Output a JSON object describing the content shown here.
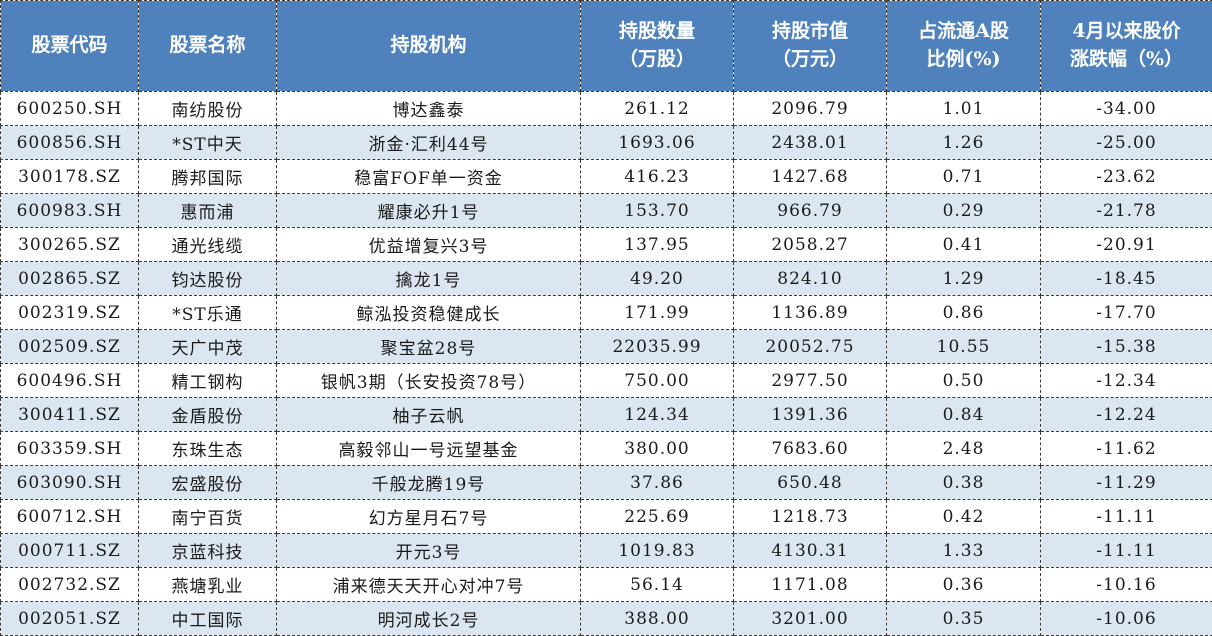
{
  "colors": {
    "header_bg": "#4F81BD",
    "header_text": "#FFFFFF",
    "row_bg": "#FFFFFF",
    "row_alt_bg": "#DCE6F1",
    "body_text": "#1A1A1A",
    "border": "#3A3A3A"
  },
  "chart_data": {
    "type": "table",
    "columns": [
      "股票代码",
      "股票名称",
      "持股机构",
      "持股数量（万股）",
      "持股市值（万元）",
      "占流通A股比例(%)",
      "4月以来股价涨跌幅（%）"
    ],
    "header_lines": [
      [
        "股票代码",
        ""
      ],
      [
        "股票名称",
        ""
      ],
      [
        "持股机构",
        ""
      ],
      [
        "持股数量",
        "（万股）"
      ],
      [
        "持股市值",
        "（万元）"
      ],
      [
        "占流通A股",
        "比例(%)"
      ],
      [
        "4月以来股价",
        "涨跌幅（%）"
      ]
    ],
    "rows": [
      [
        "600250.SH",
        "南纺股份",
        "博达鑫泰",
        "261.12",
        "2096.79",
        "1.01",
        "-34.00"
      ],
      [
        "600856.SH",
        "*ST中天",
        "浙金·汇利44号",
        "1693.06",
        "2438.01",
        "1.26",
        "-25.00"
      ],
      [
        "300178.SZ",
        "腾邦国际",
        "稳富FOF单一资金",
        "416.23",
        "1427.68",
        "0.71",
        "-23.62"
      ],
      [
        "600983.SH",
        "惠而浦",
        "耀康必升1号",
        "153.70",
        "966.79",
        "0.29",
        "-21.78"
      ],
      [
        "300265.SZ",
        "通光线缆",
        "优益增复兴3号",
        "137.95",
        "2058.27",
        "0.41",
        "-20.91"
      ],
      [
        "002865.SZ",
        "钧达股份",
        "擒龙1号",
        "49.20",
        "824.10",
        "1.29",
        "-18.45"
      ],
      [
        "002319.SZ",
        "*ST乐通",
        "鲸泓投资稳健成长",
        "171.99",
        "1136.89",
        "0.86",
        "-17.70"
      ],
      [
        "002509.SZ",
        "天广中茂",
        "聚宝盆28号",
        "22035.99",
        "20052.75",
        "10.55",
        "-15.38"
      ],
      [
        "600496.SH",
        "精工钢构",
        "银帆3期（长安投资78号）",
        "750.00",
        "2977.50",
        "0.50",
        "-12.34"
      ],
      [
        "300411.SZ",
        "金盾股份",
        "柚子云帆",
        "124.34",
        "1391.36",
        "0.84",
        "-12.24"
      ],
      [
        "603359.SH",
        "东珠生态",
        "高毅邻山一号远望基金",
        "380.00",
        "7683.60",
        "2.48",
        "-11.62"
      ],
      [
        "603090.SH",
        "宏盛股份",
        "千般龙腾19号",
        "37.86",
        "650.48",
        "0.38",
        "-11.29"
      ],
      [
        "600712.SH",
        "南宁百货",
        "幻方星月石7号",
        "225.69",
        "1218.73",
        "0.42",
        "-11.11"
      ],
      [
        "000711.SZ",
        "京蓝科技",
        "开元3号",
        "1019.83",
        "4130.31",
        "1.33",
        "-11.11"
      ],
      [
        "002732.SZ",
        "燕塘乳业",
        "浦来德天天开心对冲7号",
        "56.14",
        "1171.08",
        "0.36",
        "-10.16"
      ],
      [
        "002051.SZ",
        "中工国际",
        "明河成长2号",
        "388.00",
        "3201.00",
        "0.35",
        "-10.06"
      ]
    ]
  }
}
